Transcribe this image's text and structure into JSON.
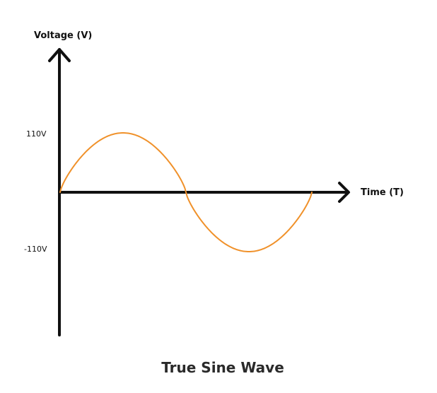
{
  "title": "True Sine Wave",
  "y_axis_label": "Voltage (V)",
  "x_axis_label": "Time (T)",
  "positive_peak_label": "110V",
  "negative_peak_label": "-110V",
  "wave_color": "#f0912a",
  "axis_color": "#111111",
  "chart_data": {
    "type": "line",
    "title": "True Sine Wave",
    "xlabel": "Time (T)",
    "ylabel": "Voltage (V)",
    "ytick_labels": [
      "110V",
      "-110V"
    ],
    "amplitude": 110,
    "cycles": 1,
    "grid": false
  }
}
